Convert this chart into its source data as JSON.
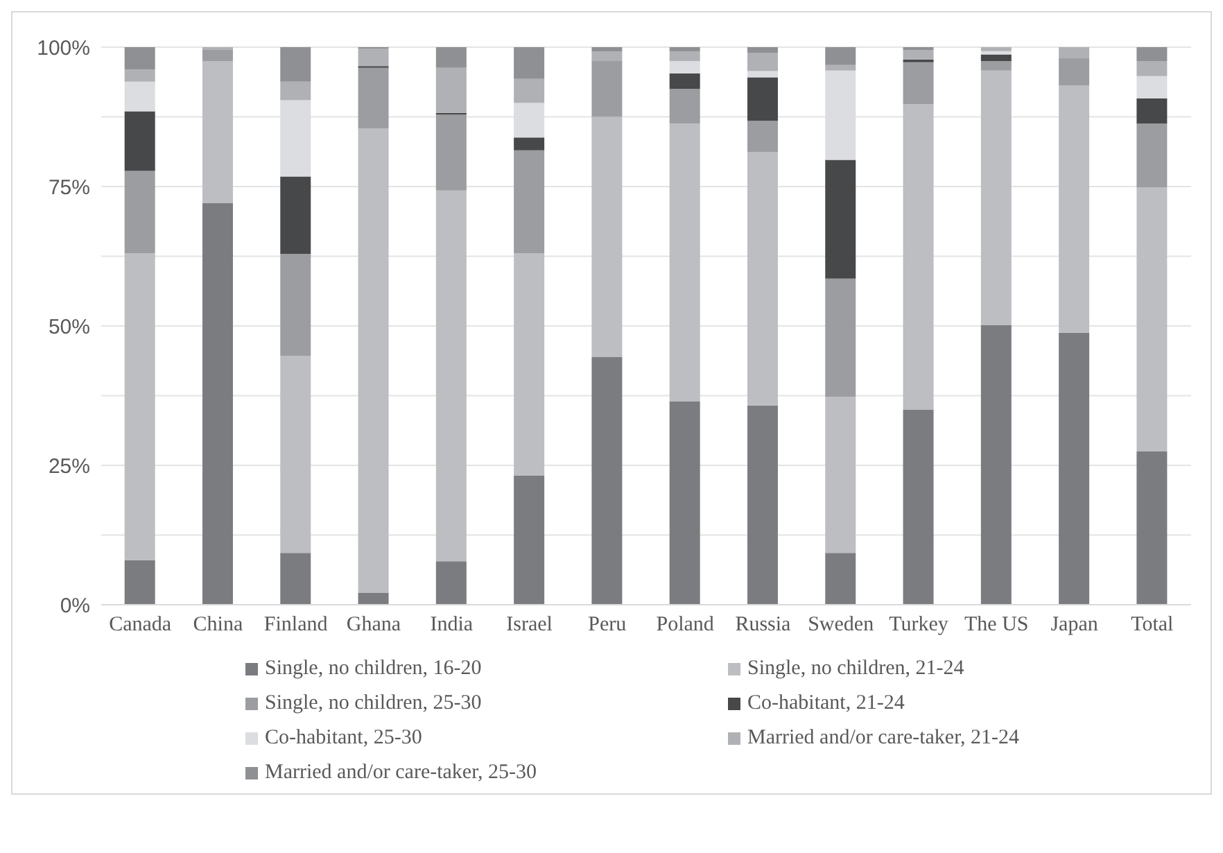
{
  "chart_data": {
    "type": "bar",
    "stacked": true,
    "categories": [
      "Canada",
      "China",
      "Finland",
      "Ghana",
      "India",
      "Israel",
      "Peru",
      "Poland",
      "Russia",
      "Sweden",
      "Turkey",
      "The US",
      "Japan",
      "Total"
    ],
    "series": [
      {
        "name": "Single, no children, 16-20",
        "color": "#7b7c80",
        "values": [
          8,
          72,
          9.3,
          2.1,
          7.8,
          23.2,
          44.4,
          36.5,
          35.7,
          9.3,
          35,
          50.2,
          48.8,
          27.5
        ]
      },
      {
        "name": "Single, no children, 21-24",
        "color": "#bdbec1",
        "values": [
          55,
          25.5,
          35.3,
          83.3,
          66.5,
          39.8,
          43.1,
          49.8,
          45.5,
          28,
          54.8,
          45.6,
          44.3,
          47.3
        ]
      },
      {
        "name": "Single, no children, 25-30",
        "color": "#9c9da0",
        "values": [
          14.8,
          2,
          18.3,
          10.9,
          13.6,
          18.5,
          10,
          6.2,
          5.6,
          21.2,
          7.5,
          1.7,
          5,
          11.5
        ]
      },
      {
        "name": "Co-habitant, 21-24",
        "color": "#47484a",
        "values": [
          10.7,
          0,
          13.9,
          0.3,
          0.3,
          2.3,
          0,
          2.8,
          7.8,
          21.3,
          0.5,
          1.2,
          0,
          4.5
        ]
      },
      {
        "name": "Co-habitant, 25-30",
        "color": "#dcdde0",
        "values": [
          5.3,
          0,
          13.7,
          0,
          0,
          6.2,
          0,
          2.2,
          1.1,
          16,
          null,
          0.6,
          null,
          4
        ]
      },
      {
        "name": "Married and/or care-taker, 21-24",
        "color": "#b0b1b4",
        "values": [
          2.2,
          0.5,
          3.3,
          3.1,
          8.1,
          4.3,
          1.7,
          1.7,
          3.3,
          1,
          1.7,
          0.7,
          1.9,
          2.7
        ]
      },
      {
        "name": "Married and/or care-taker, 25-30",
        "color": "#8f9093",
        "values": [
          4,
          0,
          6.2,
          0.3,
          3.7,
          5.7,
          0.8,
          0.8,
          1,
          3.2,
          0.5,
          0,
          0,
          2.5
        ]
      }
    ],
    "ylim": [
      0,
      100
    ],
    "yticks": [
      {
        "value": 0,
        "label": "0%"
      },
      {
        "value": 12.5,
        "label": null
      },
      {
        "value": 25,
        "label": "25%"
      },
      {
        "value": 37.5,
        "label": null
      },
      {
        "value": 50,
        "label": "50%"
      },
      {
        "value": 62.5,
        "label": null
      },
      {
        "value": 75,
        "label": "75%"
      },
      {
        "value": 87.5,
        "label": null
      },
      {
        "value": 100,
        "label": "100%"
      }
    ],
    "grid": "y",
    "legend": "bottom"
  }
}
